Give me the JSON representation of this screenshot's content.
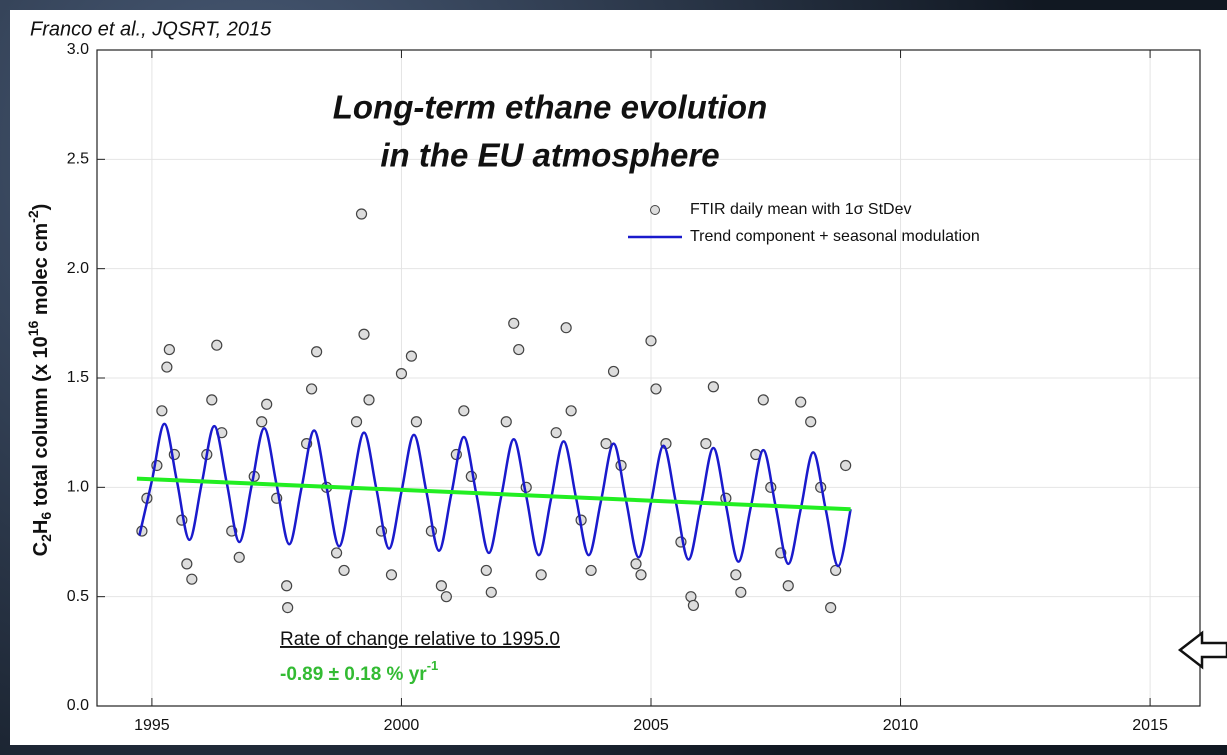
{
  "chart_data": {
    "type": "scatter",
    "citation": "Franco et al., JQSRT, 2015",
    "title": [
      "Long-term ethane evolution",
      "in the EU atmosphere"
    ],
    "y_label": [
      "C",
      "2",
      "H",
      "6",
      " total column (x 10",
      "16",
      " molec cm",
      "-2",
      ")"
    ],
    "annotation": {
      "label": "Rate of change relative to 1995.0",
      "value": [
        "-0.89 ± 0.18 % yr",
        "-1"
      ],
      "color": "#33bb33"
    },
    "xlim": [
      1993.9,
      2016
    ],
    "ylim": [
      0,
      3
    ],
    "xticks": [
      1995,
      2000,
      2005,
      2010,
      2015
    ],
    "yticks": [
      {
        "value": 0,
        "label": "0.0"
      },
      0.5,
      {
        "value": 1,
        "label": "1.0"
      },
      1.5,
      {
        "value": 2,
        "label": "2.0"
      },
      2.5,
      {
        "value": 3,
        "label": "3.0"
      }
    ],
    "grid": true,
    "series": [
      {
        "name": "FTIR daily mean with 1σ StDev",
        "type": "scatter",
        "color": "#444444",
        "x": [
          1994.8,
          1994.9,
          1995.1,
          1995.2,
          1995.3,
          1995.35,
          1995.45,
          1995.6,
          1995.7,
          1995.8,
          1996.1,
          1996.2,
          1996.3,
          1996.4,
          1996.6,
          1996.75,
          1997.05,
          1997.2,
          1997.3,
          1997.5,
          1997.7,
          1997.72,
          1998.1,
          1998.2,
          1998.3,
          1998.5,
          1998.7,
          1998.85,
          1999.1,
          1999.2,
          1999.25,
          1999.35,
          1999.6,
          1999.8,
          2000.0,
          2000.2,
          2000.3,
          2000.6,
          2000.8,
          2000.9,
          2001.1,
          2001.25,
          2001.4,
          2001.7,
          2001.8,
          2002.1,
          2002.25,
          2002.35,
          2002.5,
          2002.8,
          2003.1,
          2003.3,
          2003.4,
          2003.6,
          2003.8,
          2004.1,
          2004.25,
          2004.4,
          2004.7,
          2004.8,
          2005.0,
          2005.1,
          2005.3,
          2005.6,
          2005.8,
          2005.85,
          2006.1,
          2006.25,
          2006.5,
          2006.7,
          2006.8,
          2007.1,
          2007.25,
          2007.4,
          2007.6,
          2007.75,
          2008.0,
          2008.2,
          2008.4,
          2008.6,
          2008.7,
          2008.9
        ],
        "values": [
          0.8,
          0.95,
          1.1,
          1.35,
          1.55,
          1.63,
          1.15,
          0.85,
          0.65,
          0.58,
          1.15,
          1.4,
          1.65,
          1.25,
          0.8,
          0.68,
          1.05,
          1.3,
          1.38,
          0.95,
          0.55,
          0.45,
          1.2,
          1.45,
          1.62,
          1.0,
          0.7,
          0.62,
          1.3,
          2.25,
          1.7,
          1.4,
          0.8,
          0.6,
          1.52,
          1.6,
          1.3,
          0.8,
          0.55,
          0.5,
          1.15,
          1.35,
          1.05,
          0.62,
          0.52,
          1.3,
          1.75,
          1.63,
          1.0,
          0.6,
          1.25,
          1.73,
          1.35,
          0.85,
          0.62,
          1.2,
          1.53,
          1.1,
          0.65,
          0.6,
          1.67,
          1.45,
          1.2,
          0.75,
          0.5,
          0.46,
          1.2,
          1.46,
          0.95,
          0.6,
          0.52,
          1.15,
          1.4,
          1.0,
          0.7,
          0.55,
          1.39,
          1.3,
          1.0,
          0.45,
          0.62,
          1.1
        ]
      },
      {
        "name": "Trend component + seasonal modulation",
        "type": "line",
        "color": "#1a1acc",
        "x": [
          1994.75,
          1995,
          1995.25,
          1995.5,
          1995.75,
          1996,
          1996.25,
          1996.5,
          1996.75,
          1997,
          1997.25,
          1997.5,
          1997.75,
          1998,
          1998.25,
          1998.5,
          1998.75,
          1999,
          1999.25,
          1999.5,
          1999.75,
          2000,
          2000.25,
          2000.5,
          2000.75,
          2001,
          2001.25,
          2001.5,
          2001.75,
          2002,
          2002.25,
          2002.5,
          2002.75,
          2003,
          2003.25,
          2003.5,
          2003.75,
          2004,
          2004.25,
          2004.5,
          2004.75,
          2005,
          2005.25,
          2005.5,
          2005.75,
          2006,
          2006.25,
          2006.5,
          2006.75,
          2007,
          2007.25,
          2007.5,
          2007.75,
          2008,
          2008.25,
          2008.5,
          2008.75,
          2009
        ],
        "values": [
          0.78,
          1.03,
          1.29,
          1.03,
          0.76,
          1.02,
          1.28,
          1.02,
          0.75,
          1.01,
          1.27,
          1.01,
          0.74,
          1.0,
          1.26,
          1.0,
          0.73,
          0.99,
          1.25,
          0.99,
          0.72,
          0.98,
          1.24,
          0.98,
          0.71,
          0.97,
          1.23,
          0.97,
          0.7,
          0.96,
          1.22,
          0.96,
          0.69,
          0.95,
          1.21,
          0.95,
          0.69,
          0.94,
          1.2,
          0.94,
          0.68,
          0.93,
          1.19,
          0.93,
          0.67,
          0.92,
          1.18,
          0.92,
          0.66,
          0.91,
          1.17,
          0.91,
          0.65,
          0.9,
          1.16,
          0.9,
          0.64,
          0.9
        ]
      }
    ],
    "trend": {
      "x": [
        1994.7,
        2009.0
      ],
      "values": [
        1.04,
        0.9
      ],
      "color": "#22ee22"
    }
  }
}
